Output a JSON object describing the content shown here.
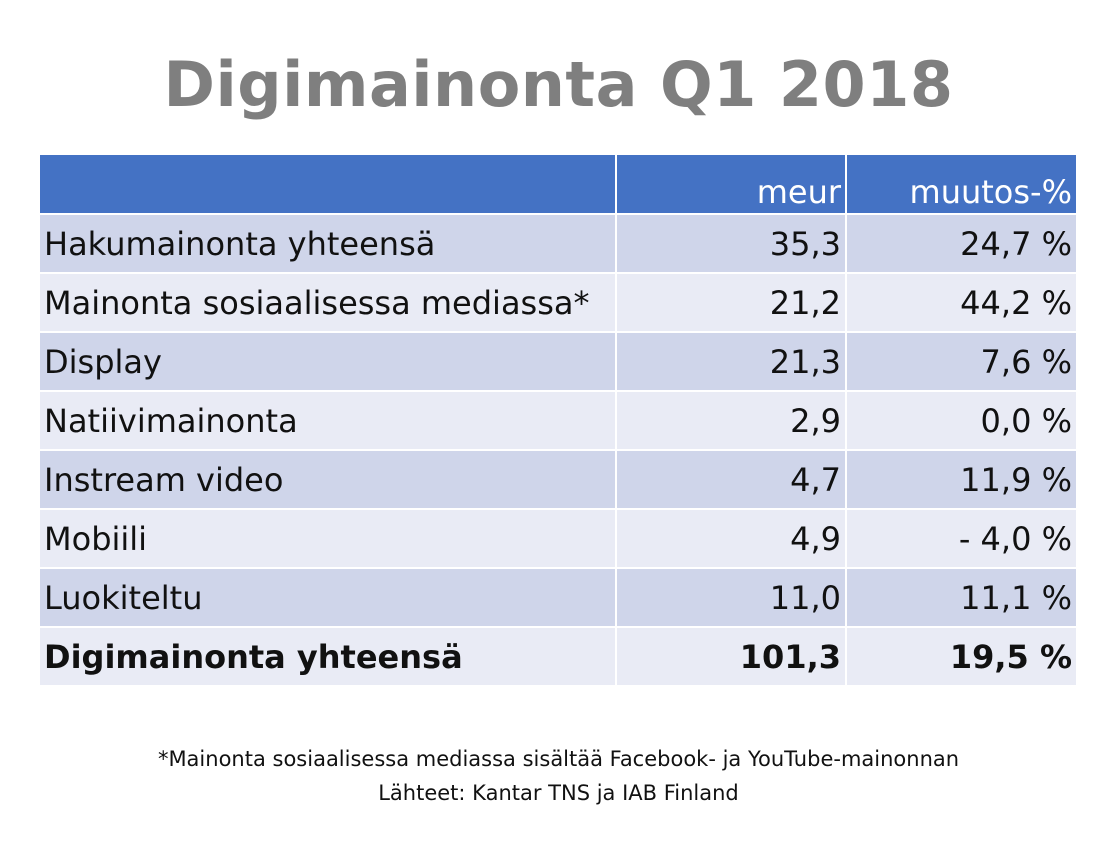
{
  "title": "Digimainonta Q1 2018",
  "table": {
    "headers": [
      "",
      "meur",
      "muutos-%"
    ],
    "rows": [
      [
        "Hakumainonta yhteensä",
        "35,3",
        "24,7 %"
      ],
      [
        "Mainonta sosiaalisessa mediassa*",
        "21,2",
        "44,2 %"
      ],
      [
        "Display",
        "21,3",
        "7,6 %"
      ],
      [
        "Natiivimainonta",
        "2,9",
        "0,0 %"
      ],
      [
        "Instream video",
        "4,7",
        "11,9 %"
      ],
      [
        "Mobiili",
        "4,9",
        "- 4,0 %"
      ],
      [
        "Luokiteltu",
        "11,0",
        "11,1 %"
      ]
    ],
    "total": [
      "Digimainonta yhteensä",
      "101,3",
      "19,5 %"
    ]
  },
  "footnote": {
    "line1": "*Mainonta sosiaalisessa mediassa sisältää Facebook- ja YouTube-mainonnan",
    "line2": "Lähteet: Kantar TNS ja IAB Finland"
  },
  "colors": {
    "header_bg": "#4472c4",
    "row_dark": "#cfd5ea",
    "row_light": "#e9ebf5",
    "title": "#7f7f7f"
  }
}
